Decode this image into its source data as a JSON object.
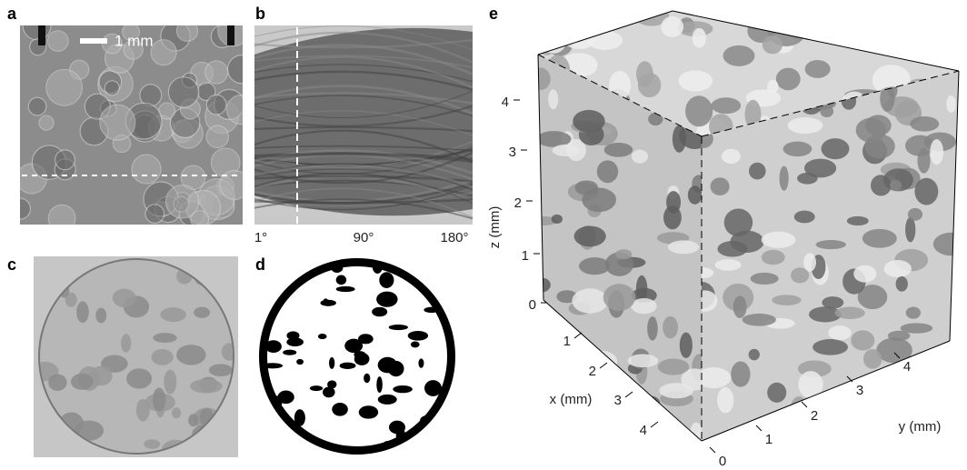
{
  "panels": {
    "a": {
      "label": "a",
      "scale_bar": "1 mm"
    },
    "b": {
      "label": "b",
      "x_ticks": [
        "1°",
        "90°",
        "180°"
      ]
    },
    "c": {
      "label": "c"
    },
    "d": {
      "label": "d"
    },
    "e": {
      "label": "e",
      "z_axis": {
        "label": "z (mm)",
        "ticks": [
          "0",
          "1",
          "2",
          "3",
          "4"
        ]
      },
      "x_axis": {
        "label": "x (mm)",
        "ticks": [
          "1",
          "2",
          "3",
          "4"
        ]
      },
      "y_axis": {
        "label": "y (mm)",
        "ticks": [
          "0",
          "1",
          "2",
          "3",
          "4"
        ]
      }
    }
  }
}
